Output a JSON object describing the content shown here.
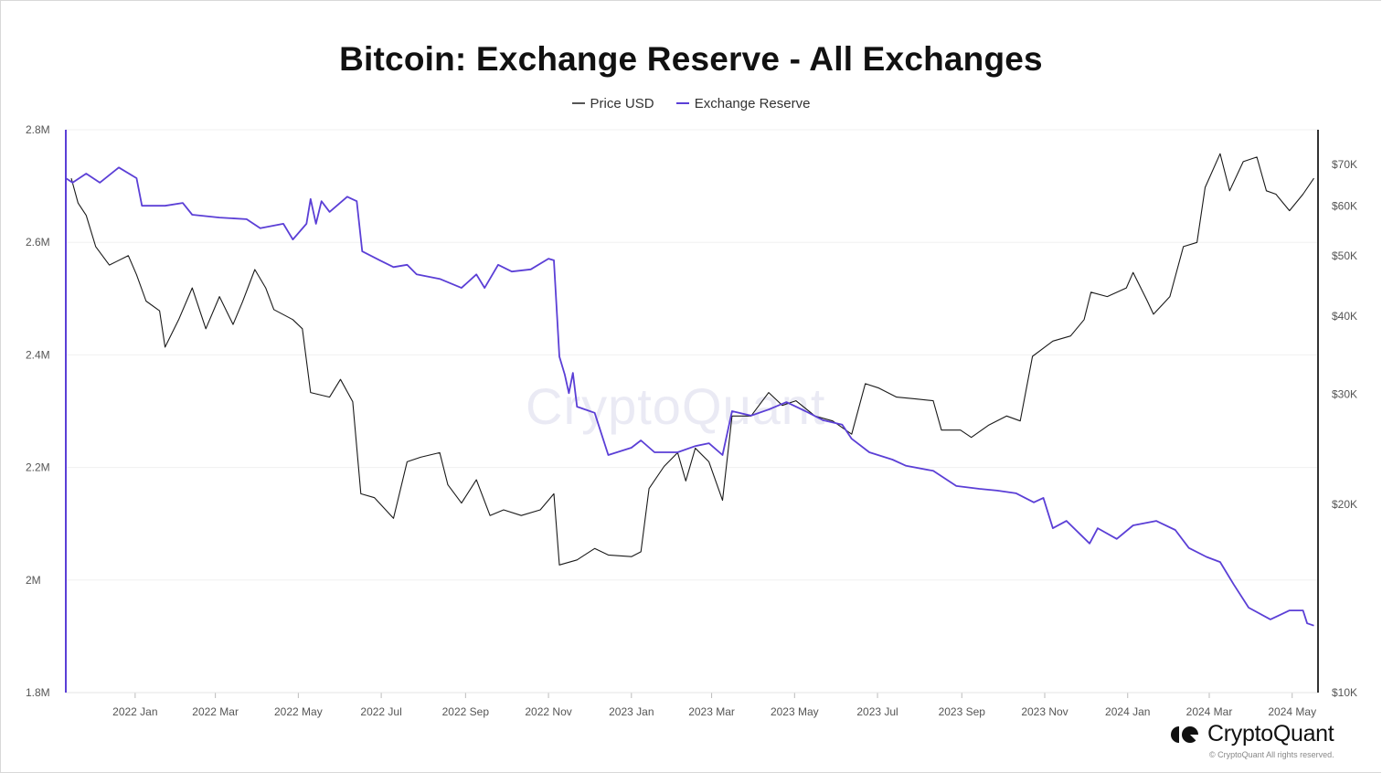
{
  "chart_data": {
    "type": "line",
    "title": "Bitcoin: Exchange Reserve - All Exchanges",
    "legend_position": "top",
    "grid": true,
    "x_range": [
      "2021-11-11",
      "2024-05-20"
    ],
    "x_ticks": [
      "2022 Jan",
      "2022 Mar",
      "2022 May",
      "2022 Jul",
      "2022 Sep",
      "2022 Nov",
      "2023 Jan",
      "2023 Mar",
      "2023 May",
      "2023 Jul",
      "2023 Sep",
      "2023 Nov",
      "2024 Jan",
      "2024 Mar",
      "2024 May"
    ],
    "x_tick_dates": [
      "2022-01-01",
      "2022-03-01",
      "2022-05-01",
      "2022-07-01",
      "2022-09-01",
      "2022-11-01",
      "2023-01-01",
      "2023-03-01",
      "2023-05-01",
      "2023-07-01",
      "2023-09-01",
      "2023-11-01",
      "2024-01-01",
      "2024-03-01",
      "2024-05-01"
    ],
    "y_left": {
      "scale": "linear",
      "range": [
        1.8,
        2.8
      ],
      "unit": "M",
      "ticks": [
        1.8,
        2.0,
        2.2,
        2.4,
        2.6,
        2.8
      ],
      "tick_labels": [
        "1.8M",
        "2M",
        "2.2M",
        "2.4M",
        "2.6M",
        "2.8M"
      ]
    },
    "y_right": {
      "scale": "log",
      "range": [
        10,
        79.5
      ],
      "unit": "K USD",
      "ticks": [
        10,
        20,
        30,
        40,
        50,
        60,
        70
      ],
      "tick_labels": [
        "$10K",
        "$20K",
        "$30K",
        "$40K",
        "$50K",
        "$60K",
        "$70K"
      ]
    },
    "series": [
      {
        "name": "Price USD",
        "axis": "right",
        "color": "#1a1a1a",
        "points": [
          [
            "2021-11-15",
            66.5
          ],
          [
            "2021-11-20",
            60.7
          ],
          [
            "2021-11-26",
            58
          ],
          [
            "2021-12-03",
            51.7
          ],
          [
            "2021-12-13",
            48.3
          ],
          [
            "2021-12-27",
            50.0
          ],
          [
            "2022-01-02",
            46.6
          ],
          [
            "2022-01-09",
            42.3
          ],
          [
            "2022-01-19",
            40.8
          ],
          [
            "2022-01-23",
            35.7
          ],
          [
            "2022-02-02",
            39.5
          ],
          [
            "2022-02-12",
            44.4
          ],
          [
            "2022-02-22",
            38.2
          ],
          [
            "2022-03-04",
            43.0
          ],
          [
            "2022-03-14",
            38.8
          ],
          [
            "2022-03-21",
            42.2
          ],
          [
            "2022-03-30",
            47.5
          ],
          [
            "2022-04-07",
            44.4
          ],
          [
            "2022-04-13",
            41.0
          ],
          [
            "2022-04-27",
            39.5
          ],
          [
            "2022-05-04",
            38.2
          ],
          [
            "2022-05-10",
            30.2
          ],
          [
            "2022-05-24",
            29.7
          ],
          [
            "2022-06-01",
            31.7
          ],
          [
            "2022-06-10",
            29.2
          ],
          [
            "2022-06-16",
            20.8
          ],
          [
            "2022-06-26",
            20.5
          ],
          [
            "2022-07-10",
            19.0
          ],
          [
            "2022-07-20",
            23.4
          ],
          [
            "2022-07-30",
            23.8
          ],
          [
            "2022-08-13",
            24.2
          ],
          [
            "2022-08-19",
            21.5
          ],
          [
            "2022-08-29",
            20.1
          ],
          [
            "2022-09-09",
            21.9
          ],
          [
            "2022-09-19",
            19.2
          ],
          [
            "2022-09-29",
            19.6
          ],
          [
            "2022-10-12",
            19.2
          ],
          [
            "2022-10-26",
            19.6
          ],
          [
            "2022-11-05",
            20.8
          ],
          [
            "2022-11-09",
            16.0
          ],
          [
            "2022-11-22",
            16.3
          ],
          [
            "2022-12-05",
            17.0
          ],
          [
            "2022-12-15",
            16.6
          ],
          [
            "2023-01-01",
            16.5
          ],
          [
            "2023-01-08",
            16.8
          ],
          [
            "2023-01-14",
            21.2
          ],
          [
            "2023-01-25",
            23.0
          ],
          [
            "2023-02-04",
            24.2
          ],
          [
            "2023-02-10",
            21.8
          ],
          [
            "2023-02-17",
            24.6
          ],
          [
            "2023-02-27",
            23.4
          ],
          [
            "2023-03-09",
            20.3
          ],
          [
            "2023-03-16",
            27.7
          ],
          [
            "2023-03-30",
            27.7
          ],
          [
            "2023-04-12",
            30.2
          ],
          [
            "2023-04-22",
            28.8
          ],
          [
            "2023-05-02",
            29.3
          ],
          [
            "2023-05-16",
            27.7
          ],
          [
            "2023-05-29",
            27.2
          ],
          [
            "2023-06-12",
            25.9
          ],
          [
            "2023-06-22",
            31.2
          ],
          [
            "2023-07-02",
            30.7
          ],
          [
            "2023-07-15",
            29.7
          ],
          [
            "2023-07-29",
            29.5
          ],
          [
            "2023-08-11",
            29.3
          ],
          [
            "2023-08-17",
            26.3
          ],
          [
            "2023-08-31",
            26.3
          ],
          [
            "2023-09-08",
            25.6
          ],
          [
            "2023-09-21",
            26.8
          ],
          [
            "2023-10-04",
            27.7
          ],
          [
            "2023-10-14",
            27.2
          ],
          [
            "2023-10-23",
            34.5
          ],
          [
            "2023-11-07",
            36.5
          ],
          [
            "2023-11-20",
            37.2
          ],
          [
            "2023-11-30",
            39.5
          ],
          [
            "2023-12-05",
            43.7
          ],
          [
            "2023-12-17",
            43.0
          ],
          [
            "2023-12-31",
            44.4
          ],
          [
            "2024-01-05",
            47.0
          ],
          [
            "2024-01-15",
            42.5
          ],
          [
            "2024-01-20",
            40.3
          ],
          [
            "2024-02-01",
            43.0
          ],
          [
            "2024-02-11",
            51.7
          ],
          [
            "2024-02-21",
            52.5
          ],
          [
            "2024-02-27",
            64.3
          ],
          [
            "2024-03-09",
            72.8
          ],
          [
            "2024-03-16",
            63.5
          ],
          [
            "2024-03-26",
            70.7
          ],
          [
            "2024-04-05",
            71.9
          ],
          [
            "2024-04-12",
            63.5
          ],
          [
            "2024-04-19",
            62.7
          ],
          [
            "2024-04-29",
            59.0
          ],
          [
            "2024-05-09",
            62.7
          ],
          [
            "2024-05-17",
            66.5
          ]
        ]
      },
      {
        "name": "Exchange Reserve",
        "axis": "left",
        "color": "#5b3fd6",
        "points": [
          [
            "2021-11-11",
            2.714
          ],
          [
            "2021-11-16",
            2.706
          ],
          [
            "2021-11-26",
            2.722
          ],
          [
            "2021-12-06",
            2.706
          ],
          [
            "2021-12-20",
            2.733
          ],
          [
            "2022-01-02",
            2.714
          ],
          [
            "2022-01-06",
            2.665
          ],
          [
            "2022-01-23",
            2.665
          ],
          [
            "2022-02-05",
            2.67
          ],
          [
            "2022-02-12",
            2.649
          ],
          [
            "2022-03-04",
            2.644
          ],
          [
            "2022-03-24",
            2.641
          ],
          [
            "2022-04-03",
            2.625
          ],
          [
            "2022-04-20",
            2.633
          ],
          [
            "2022-04-27",
            2.605
          ],
          [
            "2022-05-07",
            2.633
          ],
          [
            "2022-05-10",
            2.677
          ],
          [
            "2022-05-14",
            2.633
          ],
          [
            "2022-05-18",
            2.673
          ],
          [
            "2022-05-24",
            2.654
          ],
          [
            "2022-06-06",
            2.681
          ],
          [
            "2022-06-13",
            2.673
          ],
          [
            "2022-06-17",
            2.584
          ],
          [
            "2022-06-30",
            2.568
          ],
          [
            "2022-07-10",
            2.556
          ],
          [
            "2022-07-20",
            2.56
          ],
          [
            "2022-07-27",
            2.543
          ],
          [
            "2022-08-13",
            2.535
          ],
          [
            "2022-08-29",
            2.519
          ],
          [
            "2022-09-09",
            2.543
          ],
          [
            "2022-09-15",
            2.519
          ],
          [
            "2022-09-25",
            2.56
          ],
          [
            "2022-10-05",
            2.548
          ],
          [
            "2022-10-19",
            2.552
          ],
          [
            "2022-11-01",
            2.571
          ],
          [
            "2022-11-05",
            2.568
          ],
          [
            "2022-11-09",
            2.397
          ],
          [
            "2022-11-13",
            2.365
          ],
          [
            "2022-11-16",
            2.332
          ],
          [
            "2022-11-19",
            2.368
          ],
          [
            "2022-11-22",
            2.308
          ],
          [
            "2022-12-05",
            2.297
          ],
          [
            "2022-12-15",
            2.222
          ],
          [
            "2023-01-01",
            2.235
          ],
          [
            "2023-01-08",
            2.248
          ],
          [
            "2023-01-18",
            2.227
          ],
          [
            "2023-02-04",
            2.227
          ],
          [
            "2023-02-17",
            2.238
          ],
          [
            "2023-02-27",
            2.243
          ],
          [
            "2023-03-09",
            2.222
          ],
          [
            "2023-03-16",
            2.3
          ],
          [
            "2023-03-30",
            2.292
          ],
          [
            "2023-04-12",
            2.303
          ],
          [
            "2023-04-25",
            2.316
          ],
          [
            "2023-05-09",
            2.3
          ],
          [
            "2023-05-22",
            2.284
          ],
          [
            "2023-06-05",
            2.276
          ],
          [
            "2023-06-12",
            2.251
          ],
          [
            "2023-06-25",
            2.227
          ],
          [
            "2023-07-12",
            2.214
          ],
          [
            "2023-07-22",
            2.203
          ],
          [
            "2023-08-11",
            2.194
          ],
          [
            "2023-08-28",
            2.167
          ],
          [
            "2023-09-14",
            2.162
          ],
          [
            "2023-09-27",
            2.159
          ],
          [
            "2023-10-11",
            2.154
          ],
          [
            "2023-10-24",
            2.138
          ],
          [
            "2023-10-31",
            2.146
          ],
          [
            "2023-11-07",
            2.092
          ],
          [
            "2023-11-17",
            2.105
          ],
          [
            "2023-12-04",
            2.065
          ],
          [
            "2023-12-10",
            2.092
          ],
          [
            "2023-12-24",
            2.073
          ],
          [
            "2024-01-05",
            2.097
          ],
          [
            "2024-01-22",
            2.105
          ],
          [
            "2024-02-05",
            2.089
          ],
          [
            "2024-02-15",
            2.057
          ],
          [
            "2024-02-28",
            2.041
          ],
          [
            "2024-03-09",
            2.032
          ],
          [
            "2024-03-19",
            1.992
          ],
          [
            "2024-03-30",
            1.951
          ],
          [
            "2024-04-15",
            1.93
          ],
          [
            "2024-04-29",
            1.946
          ],
          [
            "2024-05-09",
            1.946
          ],
          [
            "2024-05-12",
            1.923
          ],
          [
            "2024-05-17",
            1.919
          ]
        ]
      }
    ]
  },
  "legend": {
    "items": [
      {
        "label": "Price USD",
        "color": "#555555"
      },
      {
        "label": "Exchange Reserve",
        "color": "#5b3fd6"
      }
    ]
  },
  "watermark": "CryptoQuant",
  "branding": {
    "logo_text": "CryptoQuant",
    "copyright": "© CryptoQuant All rights reserved."
  }
}
